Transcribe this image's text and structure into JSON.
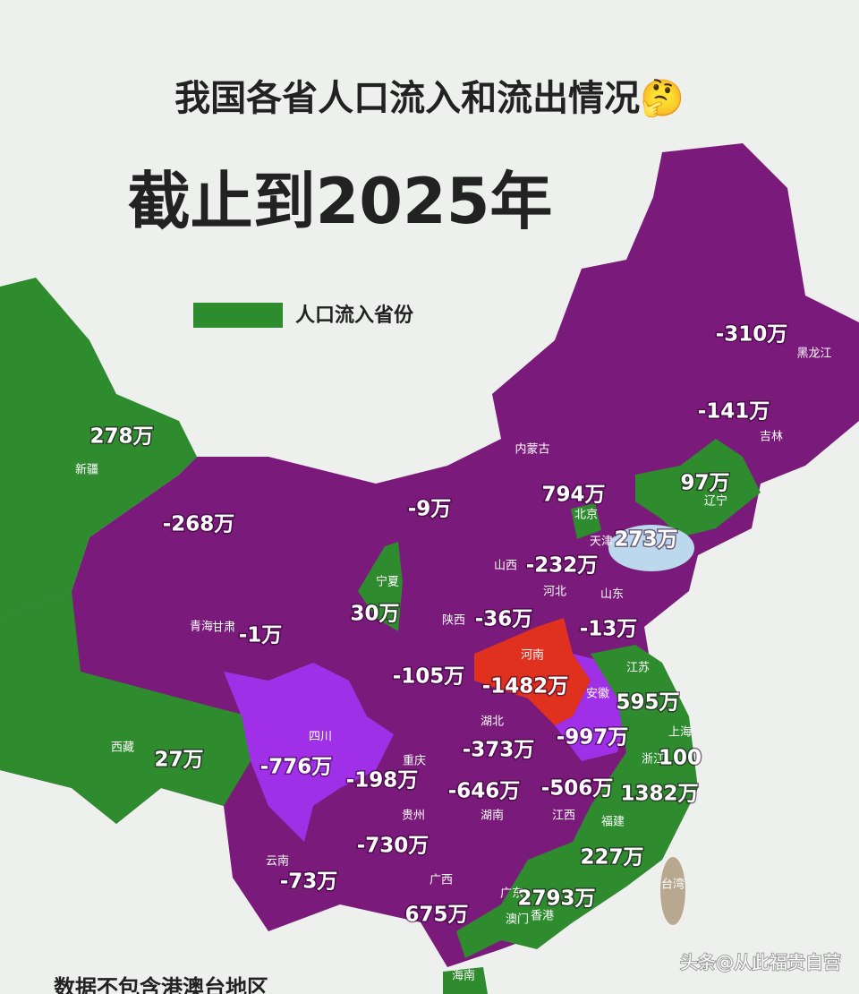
{
  "header": {
    "title": "我国各省人口流入和流出情况🤔",
    "subtitle": "截止到2025年"
  },
  "legend": {
    "label": "人口流入省份"
  },
  "region_names": [
    "新疆",
    "西藏",
    "青海",
    "甘肃",
    "宁夏",
    "内蒙古",
    "黑龙江",
    "吉林",
    "辽宁",
    "北京",
    "天津",
    "山西",
    "河北",
    "山东",
    "陕西",
    "河南",
    "江苏",
    "安徽",
    "上海",
    "浙江",
    "四川",
    "重庆",
    "湖北",
    "湖南",
    "江西",
    "福建",
    "贵州",
    "云南",
    "广西",
    "广东",
    "澳门",
    "香港",
    "海南",
    "台湾"
  ],
  "values": [
    "-310万",
    "-141万",
    "97万",
    "278万",
    "-268万",
    "-9万",
    "794万",
    "273万",
    "-232万",
    "30万",
    "-36万",
    "-1万",
    "-13万",
    "-105万",
    "-1482万",
    "595万",
    "-997万",
    "-373万",
    "-776万",
    "-198万",
    "27万",
    "-646万",
    "-506万",
    "100",
    "1382万",
    "227万",
    "2793万",
    "-730万",
    "-73万",
    "675万"
  ],
  "footer": {
    "note": "数据不包含港澳台地区",
    "watermark": "头条@从此福贵自营"
  }
}
